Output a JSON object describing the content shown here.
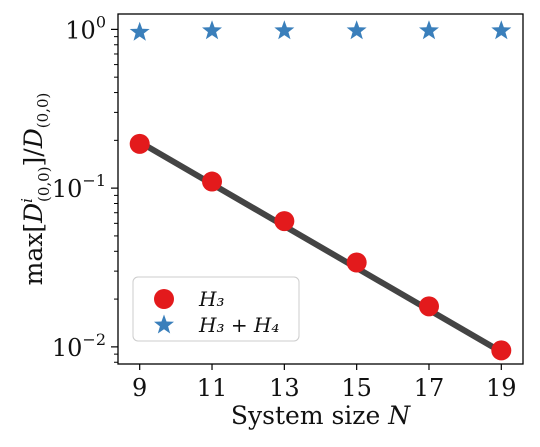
{
  "chart_data": {
    "type": "scatter",
    "title": "",
    "xlabel": "System size N",
    "ylabel": "max[D^i_(0,0)]/D_(0,0)",
    "x_ticks": [
      9,
      11,
      13,
      15,
      17,
      19
    ],
    "y_scale": "log",
    "xlim": [
      8.4,
      19.6
    ],
    "ylim": [
      0.0078,
      1.25
    ],
    "y_ticks": [
      {
        "value": 1,
        "mantissa": "10",
        "exponent": "0"
      },
      {
        "value": 0.1,
        "mantissa": "10",
        "exponent": "−1"
      },
      {
        "value": 0.01,
        "mantissa": "10",
        "exponent": "−2"
      }
    ],
    "grid": false,
    "legend_position": "lower-left",
    "series": [
      {
        "name": "H3",
        "legend_label": "H₃",
        "marker": "circle",
        "color": "#e31a1c",
        "x": [
          9,
          11,
          13,
          15,
          17,
          19
        ],
        "y": [
          0.19,
          0.11,
          0.062,
          0.034,
          0.018,
          0.0095
        ]
      },
      {
        "name": "H3+H4",
        "legend_label": "H₃ + H₄",
        "marker": "star",
        "color": "#3a7fbb",
        "x": [
          9,
          11,
          13,
          15,
          17,
          19
        ],
        "y": [
          0.96,
          0.98,
          0.98,
          0.98,
          0.98,
          0.98
        ]
      }
    ],
    "fit_line": {
      "color": "#444444",
      "x": [
        9,
        19
      ],
      "y": [
        0.195,
        0.0093
      ]
    }
  }
}
